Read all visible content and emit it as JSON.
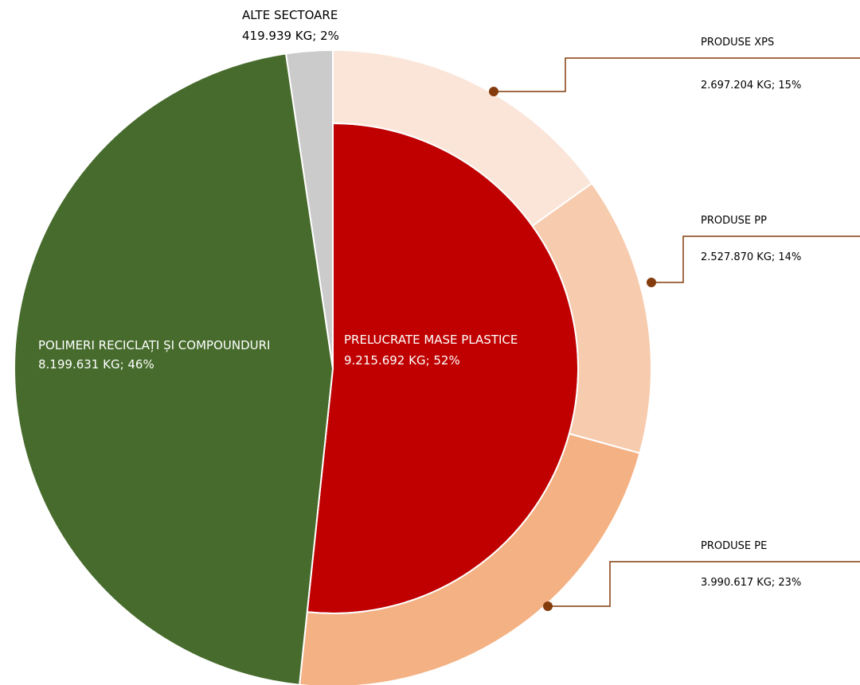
{
  "chart_data": {
    "type": "pie",
    "categories": [
      "PRELUCRATE MASE PLASTICE",
      "POLIMERI RECICLAȚI ȘI COMPOUNDURI",
      "ALTE SECTOARE"
    ],
    "values": [
      9215692,
      8199631,
      419939
    ],
    "value_labels": [
      "9.215.692 KG; 52%",
      "8.199.631 KG; 46%",
      "419.939 KG; 2%"
    ],
    "colors": [
      "#c00000",
      "#466b2c",
      "#cccbcc"
    ],
    "outer_ring": {
      "parent": 0,
      "categories": [
        "PRODUSE XPS",
        "PRODUSE PP",
        "PRODUSE PE"
      ],
      "values": [
        2697204,
        2527870,
        3990617
      ],
      "value_labels": [
        "2.697.204 KG; 15%",
        "2.527.870 KG; 14%",
        "3.990.617 KG; 23%"
      ],
      "colors": [
        "#fae5d8",
        "#f7cbae",
        "#f4b183"
      ]
    }
  }
}
